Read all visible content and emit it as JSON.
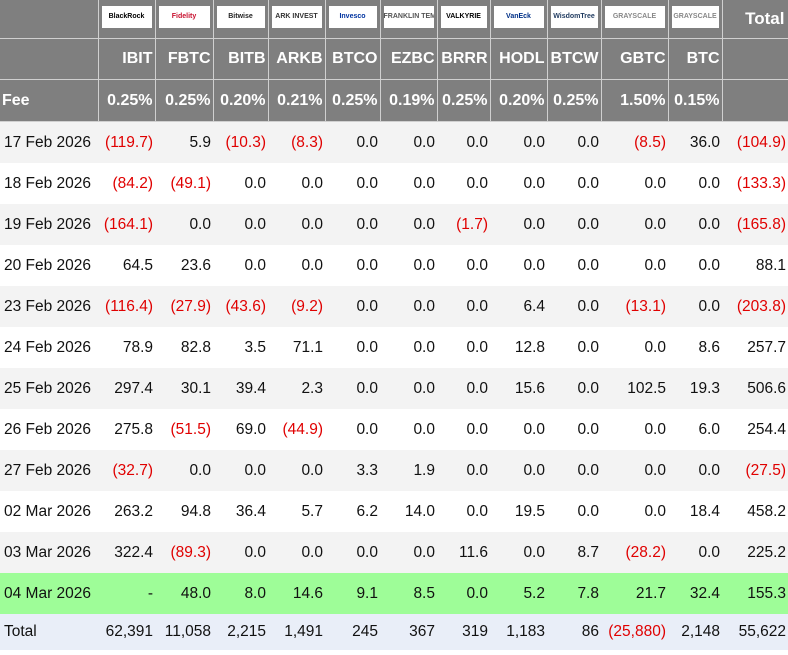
{
  "columns": [
    {
      "issuer": "BlackRock",
      "ticker": "IBIT",
      "fee": "0.25%",
      "logo_color": "#000000"
    },
    {
      "issuer": "Fidelity",
      "ticker": "FBTC",
      "fee": "0.25%",
      "logo_color": "#c8102e"
    },
    {
      "issuer": "Bitwise",
      "ticker": "BITB",
      "fee": "0.20%",
      "logo_color": "#222222"
    },
    {
      "issuer": "ARK INVEST",
      "ticker": "ARKB",
      "fee": "0.21%",
      "logo_color": "#333333"
    },
    {
      "issuer": "Invesco",
      "ticker": "BTCO",
      "fee": "0.25%",
      "logo_color": "#0033a0"
    },
    {
      "issuer": "FRANKLIN TEMPLETON",
      "ticker": "EZBC",
      "fee": "0.19%",
      "logo_color": "#555555"
    },
    {
      "issuer": "VALKYRIE",
      "ticker": "BRRR",
      "fee": "0.25%",
      "logo_color": "#000000"
    },
    {
      "issuer": "VanEck",
      "ticker": "HODL",
      "fee": "0.20%",
      "logo_color": "#003087"
    },
    {
      "issuer": "WisdomTree",
      "ticker": "BTCW",
      "fee": "0.25%",
      "logo_color": "#1f3a5f"
    },
    {
      "issuer": "GRAYSCALE",
      "ticker": "GBTC",
      "fee": "1.50%",
      "logo_color": "#888888"
    },
    {
      "issuer": "GRAYSCALE",
      "ticker": "BTC",
      "fee": "0.15%",
      "logo_color": "#888888"
    }
  ],
  "total_header": "Total",
  "fee_label": "Fee",
  "rows": [
    {
      "date": "17 Feb 2026",
      "values": [
        "(119.7)",
        "5.9",
        "(10.3)",
        "(8.3)",
        "0.0",
        "0.0",
        "0.0",
        "0.0",
        "0.0",
        "(8.5)",
        "36.0",
        "(104.9)"
      ]
    },
    {
      "date": "18 Feb 2026",
      "values": [
        "(84.2)",
        "(49.1)",
        "0.0",
        "0.0",
        "0.0",
        "0.0",
        "0.0",
        "0.0",
        "0.0",
        "0.0",
        "0.0",
        "(133.3)"
      ]
    },
    {
      "date": "19 Feb 2026",
      "values": [
        "(164.1)",
        "0.0",
        "0.0",
        "0.0",
        "0.0",
        "0.0",
        "(1.7)",
        "0.0",
        "0.0",
        "0.0",
        "0.0",
        "(165.8)"
      ]
    },
    {
      "date": "20 Feb 2026",
      "values": [
        "64.5",
        "23.6",
        "0.0",
        "0.0",
        "0.0",
        "0.0",
        "0.0",
        "0.0",
        "0.0",
        "0.0",
        "0.0",
        "88.1"
      ]
    },
    {
      "date": "23 Feb 2026",
      "values": [
        "(116.4)",
        "(27.9)",
        "(43.6)",
        "(9.2)",
        "0.0",
        "0.0",
        "0.0",
        "6.4",
        "0.0",
        "(13.1)",
        "0.0",
        "(203.8)"
      ]
    },
    {
      "date": "24 Feb 2026",
      "values": [
        "78.9",
        "82.8",
        "3.5",
        "71.1",
        "0.0",
        "0.0",
        "0.0",
        "12.8",
        "0.0",
        "0.0",
        "8.6",
        "257.7"
      ]
    },
    {
      "date": "25 Feb 2026",
      "values": [
        "297.4",
        "30.1",
        "39.4",
        "2.3",
        "0.0",
        "0.0",
        "0.0",
        "15.6",
        "0.0",
        "102.5",
        "19.3",
        "506.6"
      ]
    },
    {
      "date": "26 Feb 2026",
      "values": [
        "275.8",
        "(51.5)",
        "69.0",
        "(44.9)",
        "0.0",
        "0.0",
        "0.0",
        "0.0",
        "0.0",
        "0.0",
        "6.0",
        "254.4"
      ]
    },
    {
      "date": "27 Feb 2026",
      "values": [
        "(32.7)",
        "0.0",
        "0.0",
        "0.0",
        "3.3",
        "1.9",
        "0.0",
        "0.0",
        "0.0",
        "0.0",
        "0.0",
        "(27.5)"
      ]
    },
    {
      "date": "02 Mar 2026",
      "values": [
        "263.2",
        "94.8",
        "36.4",
        "5.7",
        "6.2",
        "14.0",
        "0.0",
        "19.5",
        "0.0",
        "0.0",
        "18.4",
        "458.2"
      ]
    },
    {
      "date": "03 Mar 2026",
      "values": [
        "322.4",
        "(89.3)",
        "0.0",
        "0.0",
        "0.0",
        "0.0",
        "11.6",
        "0.0",
        "8.7",
        "(28.2)",
        "0.0",
        "225.2"
      ]
    },
    {
      "date": "04 Mar 2026",
      "values": [
        "-",
        "48.0",
        "8.0",
        "14.6",
        "9.1",
        "8.5",
        "0.0",
        "5.2",
        "7.8",
        "21.7",
        "32.4",
        "155.3"
      ],
      "highlight": true
    }
  ],
  "total_row": {
    "label": "Total",
    "values": [
      "62,391",
      "11,058",
      "2,215",
      "1,491",
      "245",
      "367",
      "319",
      "1,183",
      "86",
      "(25,880)",
      "2,148",
      "55,622"
    ]
  },
  "colors": {
    "header_bg": "#7f7f7f",
    "negative": "#e00000",
    "latest_row": "#9efd98",
    "total_row": "#e9eef8"
  }
}
